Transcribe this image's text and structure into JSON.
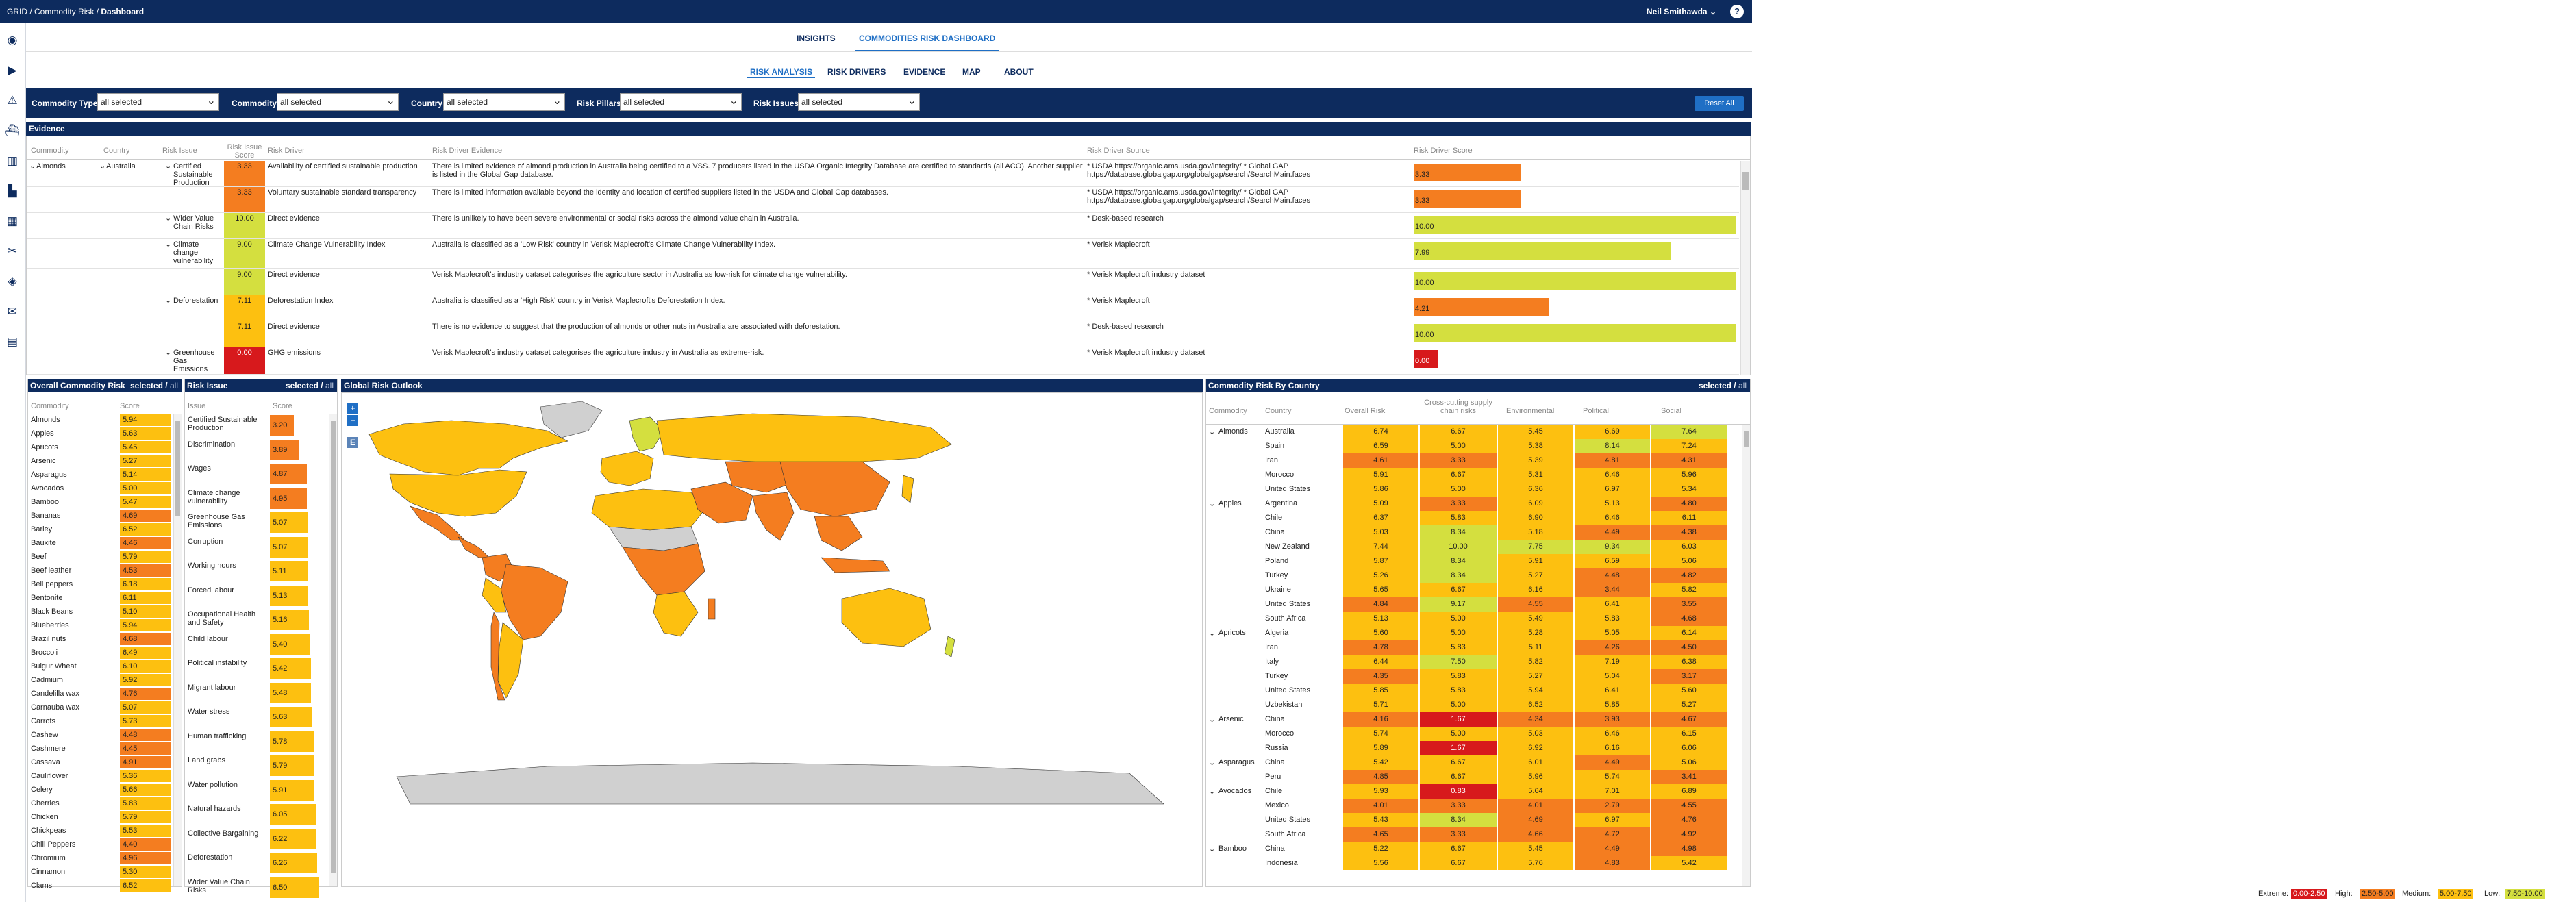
{
  "breadcrumb": [
    "GRID",
    "Commodity Risk",
    "Dashboard"
  ],
  "user": "Neil Smithawda",
  "help": "?",
  "top_tabs": [
    "INSIGHTS",
    "COMMODITIES RISK DASHBOARD"
  ],
  "sub_tabs": [
    "RISK ANALYSIS",
    "RISK DRIVERS",
    "EVIDENCE",
    "MAP",
    "ABOUT"
  ],
  "filters": [
    {
      "label": "Commodity Type",
      "value": "all selected"
    },
    {
      "label": "Commodity",
      "value": "all selected"
    },
    {
      "label": "Country",
      "value": "all selected"
    },
    {
      "label": "Risk Pillars",
      "value": "all selected"
    },
    {
      "label": "Risk Issues",
      "value": "all selected"
    }
  ],
  "reset_label": "Reset All",
  "evidence": {
    "title": "Evidence",
    "columns": [
      "Commodity",
      "Country",
      "Risk Issue",
      "Risk Issue Score",
      "Risk Driver",
      "Risk Driver Evidence",
      "Risk Driver Source",
      "Risk Driver Score"
    ],
    "rows": [
      {
        "commodity": "Almonds",
        "country": "Australia",
        "issue": "Certified Sustainable Production",
        "issue_score": "3.33",
        "driver": "Availability of certified sustainable production",
        "evidence": "There is limited evidence of almond production in Australia being certified to a VSS. 7 producers listed in the USDA Organic Integrity Database are certified to standards (all ACO). Another supplier is listed in the Global Gap database.",
        "source": "* USDA https://organic.ams.usda.gov/integrity/ * Global GAP https://database.globalgap.org/globalgap/search/SearchMain.faces",
        "driver_score": "3.33"
      },
      {
        "commodity": "",
        "country": "",
        "issue": "",
        "issue_score": "3.33",
        "driver": "Voluntary sustainable standard transparency",
        "evidence": "There is limited information available beyond the identity and location of certified suppliers listed in the USDA and Global Gap databases.",
        "source": "* USDA https://organic.ams.usda.gov/integrity/ * Global GAP https://database.globalgap.org/globalgap/search/SearchMain.faces",
        "driver_score": "3.33"
      },
      {
        "commodity": "",
        "country": "",
        "issue": "Wider Value Chain Risks",
        "issue_score": "10.00",
        "driver": "Direct evidence",
        "evidence": "There is unlikely to have been severe environmental or social risks across the almond value chain in Australia.",
        "source": "* Desk-based research",
        "driver_score": "10.00"
      },
      {
        "commodity": "",
        "country": "",
        "issue": "Climate change vulnerability",
        "issue_score": "9.00",
        "driver": "Climate Change Vulnerability Index",
        "evidence": "Australia is classified as a 'Low Risk' country in Verisk Maplecroft's Climate Change Vulnerability Index.",
        "source": "* Verisk Maplecroft",
        "driver_score": "7.99"
      },
      {
        "commodity": "",
        "country": "",
        "issue": "",
        "issue_score": "9.00",
        "driver": "Direct evidence",
        "evidence": "Verisk Maplecroft's industry dataset categorises the agriculture sector in Australia as low-risk for climate change vulnerability.",
        "source": "* Verisk Maplecroft industry dataset",
        "driver_score": "10.00"
      },
      {
        "commodity": "",
        "country": "",
        "issue": "Deforestation",
        "issue_score": "7.11",
        "driver": "Deforestation Index",
        "evidence": "Australia is classified as a 'High Risk' country in Verisk Maplecroft's Deforestation Index.",
        "source": "* Verisk Maplecroft",
        "driver_score": "4.21"
      },
      {
        "commodity": "",
        "country": "",
        "issue": "",
        "issue_score": "7.11",
        "driver": "Direct evidence",
        "evidence": "There is no evidence to suggest that the production of almonds or other nuts in Australia are associated with deforestation.",
        "source": "* Desk-based research",
        "driver_score": "10.00"
      },
      {
        "commodity": "",
        "country": "",
        "issue": "Greenhouse Gas Emissions",
        "issue_score": "0.00",
        "driver": "GHG emissions",
        "evidence": "Verisk Maplecroft's industry dataset categorises the agriculture industry in Australia as extreme-risk.",
        "source": "* Verisk Maplecroft industry dataset",
        "driver_score": "0.00"
      }
    ]
  },
  "overall": {
    "title": "Overall Commodity Risk",
    "selected": "selected",
    "all": "all",
    "columns": [
      "Commodity",
      "Score"
    ],
    "rows": [
      [
        "Almonds",
        "5.94"
      ],
      [
        "Apples",
        "5.63"
      ],
      [
        "Apricots",
        "5.45"
      ],
      [
        "Arsenic",
        "5.27"
      ],
      [
        "Asparagus",
        "5.14"
      ],
      [
        "Avocados",
        "5.00"
      ],
      [
        "Bamboo",
        "5.47"
      ],
      [
        "Bananas",
        "4.69"
      ],
      [
        "Barley",
        "6.52"
      ],
      [
        "Bauxite",
        "4.46"
      ],
      [
        "Beef",
        "5.79"
      ],
      [
        "Beef leather",
        "4.53"
      ],
      [
        "Bell peppers",
        "6.18"
      ],
      [
        "Bentonite",
        "6.11"
      ],
      [
        "Black Beans",
        "5.10"
      ],
      [
        "Blueberries",
        "5.94"
      ],
      [
        "Brazil nuts",
        "4.68"
      ],
      [
        "Broccoli",
        "6.49"
      ],
      [
        "Bulgur Wheat",
        "6.10"
      ],
      [
        "Cadmium",
        "5.92"
      ],
      [
        "Candelilla wax",
        "4.76"
      ],
      [
        "Carnauba wax",
        "5.07"
      ],
      [
        "Carrots",
        "5.73"
      ],
      [
        "Cashew",
        "4.48"
      ],
      [
        "Cashmere",
        "4.45"
      ],
      [
        "Cassava",
        "4.91"
      ],
      [
        "Cauliflower",
        "5.36"
      ],
      [
        "Celery",
        "5.66"
      ],
      [
        "Cherries",
        "5.83"
      ],
      [
        "Chicken",
        "5.79"
      ],
      [
        "Chickpeas",
        "5.53"
      ],
      [
        "Chili Peppers",
        "4.40"
      ],
      [
        "Chromium",
        "4.96"
      ],
      [
        "Cinnamon",
        "5.30"
      ],
      [
        "Clams",
        "6.52"
      ]
    ]
  },
  "issues": {
    "title": "Risk Issue",
    "selected": "selected",
    "all": "all",
    "columns": [
      "Issue",
      "Score"
    ],
    "rows": [
      [
        "Certified Sustainable Production",
        "3.20"
      ],
      [
        "Discrimination",
        "3.89"
      ],
      [
        "Wages",
        "4.87"
      ],
      [
        "Climate change vulnerability",
        "4.95"
      ],
      [
        "Greenhouse Gas Emissions",
        "5.07"
      ],
      [
        "Corruption",
        "5.07"
      ],
      [
        "Working hours",
        "5.11"
      ],
      [
        "Forced labour",
        "5.13"
      ],
      [
        "Occupational Health and Safety",
        "5.16"
      ],
      [
        "Child labour",
        "5.40"
      ],
      [
        "Political instability",
        "5.42"
      ],
      [
        "Migrant labour",
        "5.48"
      ],
      [
        "Water stress",
        "5.63"
      ],
      [
        "Human trafficking",
        "5.78"
      ],
      [
        "Land grabs",
        "5.79"
      ],
      [
        "Water pollution",
        "5.91"
      ],
      [
        "Natural hazards",
        "6.05"
      ],
      [
        "Collective Bargaining",
        "6.22"
      ],
      [
        "Deforestation",
        "6.26"
      ],
      [
        "Wider Value Chain Risks",
        "6.50"
      ]
    ]
  },
  "map": {
    "title": "Global Risk Outlook",
    "zoom_in": "+",
    "zoom_out": "−",
    "extra": "E"
  },
  "by_country": {
    "title": "Commodity Risk By Country",
    "selected": "selected",
    "all": "all",
    "columns": [
      "Commodity",
      "Country",
      "Overall Risk",
      "Cross-cutting supply chain risks",
      "Environmental",
      "Political",
      "Social"
    ],
    "rows": [
      [
        "Almonds",
        "Australia",
        "6.74",
        "6.67",
        "5.45",
        "6.69",
        "7.64"
      ],
      [
        "",
        "Spain",
        "6.59",
        "5.00",
        "5.38",
        "8.14",
        "7.24"
      ],
      [
        "",
        "Iran",
        "4.61",
        "3.33",
        "5.39",
        "4.81",
        "4.31"
      ],
      [
        "",
        "Morocco",
        "5.91",
        "6.67",
        "5.31",
        "6.46",
        "5.96"
      ],
      [
        "",
        "United States",
        "5.86",
        "5.00",
        "6.36",
        "6.97",
        "5.34"
      ],
      [
        "Apples",
        "Argentina",
        "5.09",
        "3.33",
        "6.09",
        "5.13",
        "4.80"
      ],
      [
        "",
        "Chile",
        "6.37",
        "5.83",
        "6.90",
        "6.46",
        "6.11"
      ],
      [
        "",
        "China",
        "5.03",
        "8.34",
        "5.18",
        "4.49",
        "4.38"
      ],
      [
        "",
        "New Zealand",
        "7.44",
        "10.00",
        "7.75",
        "9.34",
        "6.03"
      ],
      [
        "",
        "Poland",
        "5.87",
        "8.34",
        "5.91",
        "6.59",
        "5.06"
      ],
      [
        "",
        "Turkey",
        "5.26",
        "8.34",
        "5.27",
        "4.48",
        "4.82"
      ],
      [
        "",
        "Ukraine",
        "5.65",
        "6.67",
        "6.16",
        "3.44",
        "5.82"
      ],
      [
        "",
        "United States",
        "4.84",
        "9.17",
        "4.55",
        "6.41",
        "3.55"
      ],
      [
        "",
        "South Africa",
        "5.13",
        "5.00",
        "5.49",
        "5.83",
        "4.68"
      ],
      [
        "Apricots",
        "Algeria",
        "5.60",
        "5.00",
        "5.28",
        "5.05",
        "6.14"
      ],
      [
        "",
        "Iran",
        "4.78",
        "5.83",
        "5.11",
        "4.26",
        "4.50"
      ],
      [
        "",
        "Italy",
        "6.44",
        "7.50",
        "5.82",
        "7.19",
        "6.38"
      ],
      [
        "",
        "Turkey",
        "4.35",
        "5.83",
        "5.27",
        "5.04",
        "3.17"
      ],
      [
        "",
        "United States",
        "5.85",
        "5.83",
        "5.94",
        "6.41",
        "5.60"
      ],
      [
        "",
        "Uzbekistan",
        "5.71",
        "5.00",
        "6.52",
        "5.85",
        "5.27"
      ],
      [
        "Arsenic",
        "China",
        "4.16",
        "1.67",
        "4.34",
        "3.93",
        "4.67"
      ],
      [
        "",
        "Morocco",
        "5.74",
        "5.00",
        "5.03",
        "6.46",
        "6.15"
      ],
      [
        "",
        "Russia",
        "5.89",
        "1.67",
        "6.92",
        "6.16",
        "6.06"
      ],
      [
        "Asparagus",
        "China",
        "5.42",
        "6.67",
        "6.01",
        "4.49",
        "5.06"
      ],
      [
        "",
        "Peru",
        "4.85",
        "6.67",
        "5.96",
        "5.74",
        "3.41"
      ],
      [
        "Avocados",
        "Chile",
        "5.93",
        "0.83",
        "5.64",
        "7.01",
        "6.89"
      ],
      [
        "",
        "Mexico",
        "4.01",
        "3.33",
        "4.01",
        "2.79",
        "4.55"
      ],
      [
        "",
        "United States",
        "5.43",
        "8.34",
        "4.69",
        "6.97",
        "4.76"
      ],
      [
        "",
        "South Africa",
        "4.65",
        "3.33",
        "4.66",
        "4.72",
        "4.92"
      ],
      [
        "Bamboo",
        "China",
        "5.22",
        "6.67",
        "5.45",
        "4.49",
        "4.98"
      ],
      [
        "",
        "Indonesia",
        "5.56",
        "6.67",
        "5.76",
        "4.83",
        "5.42"
      ]
    ]
  },
  "legend": [
    {
      "label": "Extreme:",
      "range": "0.00-2.50",
      "color": "#d7191c"
    },
    {
      "label": "High:",
      "range": "2.50-5.00",
      "color": "#f47d20"
    },
    {
      "label": "Medium:",
      "range": "5.00-7.50",
      "color": "#fdc010"
    },
    {
      "label": "Low:",
      "range": "7.50-10.00",
      "color": "#d4df3f"
    }
  ],
  "colors": {
    "navy": "#0d2b5e",
    "accent": "#1f6fc5",
    "extreme": "#d7191c",
    "high": "#f47d20",
    "medium": "#fdc010",
    "low": "#d4df3f",
    "nodata": "#d0d0d0"
  },
  "sidebar_icons": [
    "globe-icon",
    "play-icon",
    "warning-icon",
    "ship-icon",
    "chart-building-icon",
    "factory-icon",
    "buildings-icon",
    "tools-icon",
    "box-icon",
    "mail-icon",
    "calendar-icon"
  ]
}
